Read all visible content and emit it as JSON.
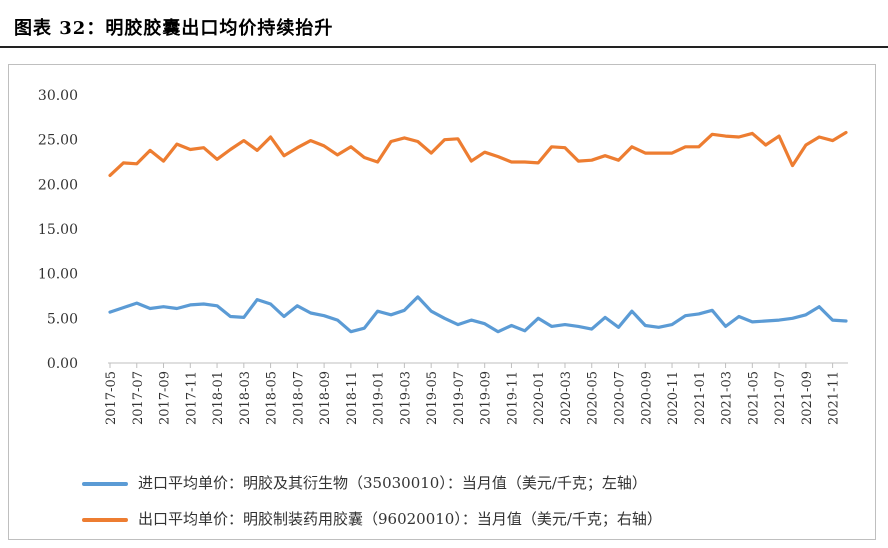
{
  "figure_title": "图表 32：明胶胶囊出口均价持续抬升",
  "chart_data": {
    "type": "line",
    "x": [
      "2017-05",
      "2017-06",
      "2017-07",
      "2017-08",
      "2017-09",
      "2017-10",
      "2017-11",
      "2017-12",
      "2018-01",
      "2018-02",
      "2018-03",
      "2018-04",
      "2018-05",
      "2018-06",
      "2018-07",
      "2018-08",
      "2018-09",
      "2018-10",
      "2018-11",
      "2018-12",
      "2019-01",
      "2019-02",
      "2019-03",
      "2019-04",
      "2019-05",
      "2019-06",
      "2019-07",
      "2019-08",
      "2019-09",
      "2019-10",
      "2019-11",
      "2019-12",
      "2020-01",
      "2020-02",
      "2020-03",
      "2020-04",
      "2020-05",
      "2020-06",
      "2020-07",
      "2020-08",
      "2020-09",
      "2020-10",
      "2020-11",
      "2020-12",
      "2021-01",
      "2021-02",
      "2021-03",
      "2021-04",
      "2021-05",
      "2021-06",
      "2021-07",
      "2021-08",
      "2021-09",
      "2021-10",
      "2021-11",
      "2021-12"
    ],
    "x_tick_labels": [
      "2017-05",
      "2017-07",
      "2017-09",
      "2017-11",
      "2018-01",
      "2018-03",
      "2018-05",
      "2018-07",
      "2018-09",
      "2018-11",
      "2019-01",
      "2019-03",
      "2019-05",
      "2019-07",
      "2019-09",
      "2019-11",
      "2020-01",
      "2020-03",
      "2020-05",
      "2020-07",
      "2020-09",
      "2020-11",
      "2021-01",
      "2021-03",
      "2021-05",
      "2021-07",
      "2021-09",
      "2021-11"
    ],
    "y_tick_labels": [
      "30.00",
      "25.00",
      "20.00",
      "15.00",
      "10.00",
      "5.00",
      "0.00"
    ],
    "ylim": [
      0,
      30
    ],
    "grid": false,
    "legend_position": "bottom",
    "series": [
      {
        "name": "进口平均单价：明胶及其衍生物（35030010）：当月值（美元/千克；左轴）",
        "color": "#5B9BD5",
        "values": [
          5.7,
          6.2,
          6.7,
          6.1,
          6.3,
          6.1,
          6.5,
          6.6,
          6.4,
          5.2,
          5.1,
          7.1,
          6.6,
          5.2,
          6.4,
          5.6,
          5.3,
          4.8,
          3.5,
          3.9,
          5.8,
          5.4,
          5.9,
          7.4,
          5.8,
          5.0,
          4.3,
          4.8,
          4.4,
          3.5,
          4.2,
          3.6,
          5.0,
          4.1,
          4.3,
          4.1,
          3.8,
          5.1,
          4.0,
          5.8,
          4.2,
          4.0,
          4.3,
          5.3,
          5.5,
          5.9,
          4.1,
          5.2,
          4.6,
          4.7,
          4.8,
          5.0,
          5.4,
          6.3,
          4.8,
          4.7
        ]
      },
      {
        "name": "出口平均单价：明胶制装药用胶囊（96020010）：当月值（美元/千克；右轴）",
        "color": "#ED7D31",
        "values": [
          21.0,
          22.4,
          22.3,
          23.8,
          22.6,
          24.5,
          23.9,
          24.1,
          22.8,
          23.9,
          24.9,
          23.8,
          25.3,
          23.2,
          24.1,
          24.9,
          24.3,
          23.3,
          24.2,
          23.0,
          22.5,
          24.8,
          25.2,
          24.8,
          23.5,
          25.0,
          25.1,
          22.6,
          23.6,
          23.1,
          22.5,
          22.5,
          22.4,
          24.2,
          24.1,
          22.6,
          22.7,
          23.2,
          22.7,
          24.2,
          23.5,
          23.5,
          23.5,
          24.2,
          24.2,
          25.6,
          25.4,
          25.3,
          25.7,
          24.4,
          25.4,
          22.1,
          24.4,
          25.3,
          24.9,
          25.8
        ]
      }
    ]
  }
}
